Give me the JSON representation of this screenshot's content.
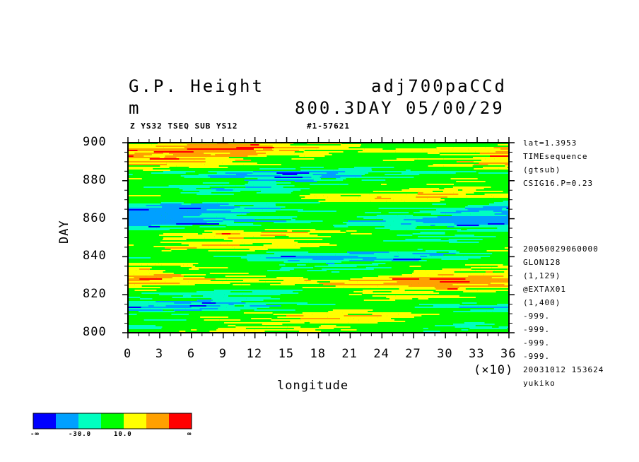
{
  "header": {
    "title_left": "G.P. Height",
    "title_right": "adj700paCCd",
    "unit": "m",
    "subtitle_right": "800.3DAY 05/00/29",
    "caption_left": "Z YS32 TSEQ SUB YS12",
    "caption_right": "#1-57621"
  },
  "side_info": {
    "top": [
      "lat=1.3953",
      "TIMEsequence",
      "(gtsub)",
      "CSIG16.P=0.23"
    ],
    "bottom": [
      "20050029060000",
      "GLON128",
      "(1,129)",
      "@EXTAX01",
      "(1,400)",
      "-999.",
      "-999.",
      "-999.",
      "-999.",
      "20031012 153624",
      "yukiko"
    ]
  },
  "colorbar": {
    "colors": [
      "#0000ff",
      "#00a0ff",
      "#00ffc0",
      "#00ff00",
      "#ffff00",
      "#ffa000",
      "#ff0000"
    ],
    "labels": [
      "-∞",
      "-30.0",
      "10.0",
      "∞"
    ]
  },
  "chart_data": {
    "type": "heatmap",
    "xlabel": "longitude",
    "ylabel": "DAY",
    "x_multiplier_label": "(×10)",
    "xlim": [
      0,
      36
    ],
    "ylim": [
      800,
      900
    ],
    "x_ticks": [
      0,
      3,
      6,
      9,
      12,
      15,
      18,
      21,
      24,
      27,
      30,
      33,
      36
    ],
    "y_ticks": [
      800,
      820,
      840,
      860,
      880,
      900
    ],
    "palette": [
      "#0000ff",
      "#00a0ff",
      "#00ffc0",
      "#00ff00",
      "#ffff00",
      "#ffa000",
      "#ff0000"
    ],
    "dominant_level_index": 3
  }
}
